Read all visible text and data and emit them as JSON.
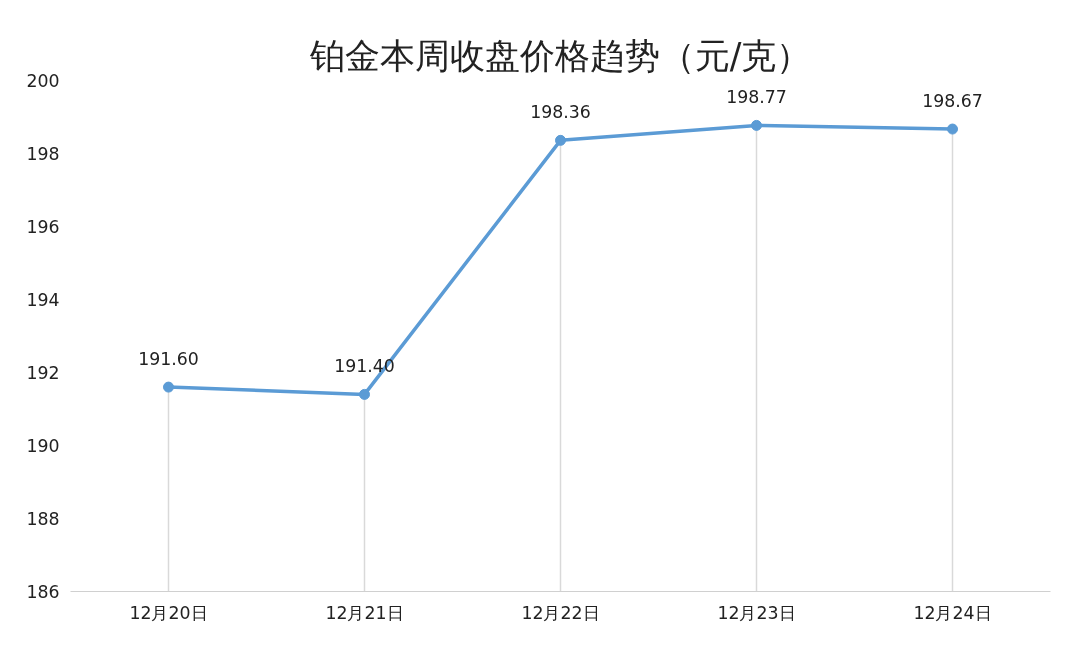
{
  "chart_data": {
    "type": "line",
    "title": "铂金本周收盘价格趋势（元/克）",
    "categories": [
      "12月20日",
      "12月21日",
      "12月22日",
      "12月23日",
      "12月24日"
    ],
    "series": [
      {
        "color": "#5b9bd5",
        "values": [
          191.6,
          191.4,
          198.36,
          198.77,
          198.67
        ]
      }
    ],
    "value_labels": [
      "191.60",
      "191.40",
      "198.36",
      "198.77",
      "198.67"
    ],
    "ylim": [
      186,
      200
    ],
    "yticks": [
      186,
      188,
      190,
      192,
      194,
      196,
      198,
      200
    ],
    "grid": "x",
    "marker": "circle",
    "line_style": "solid"
  }
}
